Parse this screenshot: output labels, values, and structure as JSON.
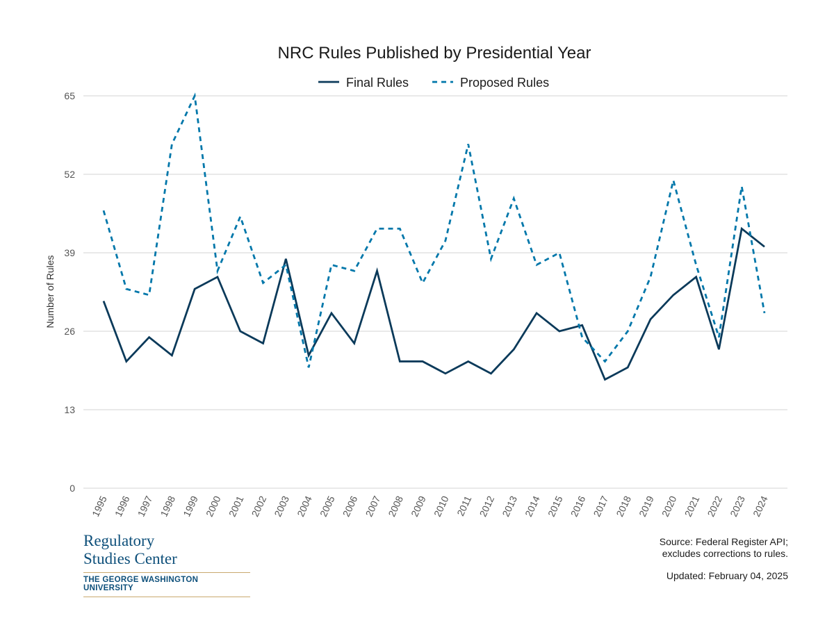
{
  "chart_data": {
    "type": "line",
    "title": "NRC Rules Published by Presidential Year",
    "xlabel": "",
    "ylabel": "Number of Rules",
    "ylim": [
      0,
      65
    ],
    "yticks": [
      0,
      13,
      26,
      39,
      52,
      65
    ],
    "grid": true,
    "legend_position": "top",
    "categories": [
      "1995",
      "1996",
      "1997",
      "1998",
      "1999",
      "2000",
      "2001",
      "2002",
      "2003",
      "2004",
      "2005",
      "2006",
      "2007",
      "2008",
      "2009",
      "2010",
      "2011",
      "2012",
      "2013",
      "2014",
      "2015",
      "2016",
      "2017",
      "2018",
      "2019",
      "2020",
      "2021",
      "2022",
      "2023",
      "2024"
    ],
    "series": [
      {
        "name": "Final Rules",
        "style": "solid",
        "color": "#0b3a5a",
        "values": [
          31,
          21,
          25,
          22,
          33,
          35,
          26,
          24,
          38,
          22,
          29,
          24,
          36,
          21,
          21,
          19,
          21,
          19,
          23,
          29,
          26,
          27,
          18,
          20,
          28,
          32,
          35,
          23,
          43,
          40
        ]
      },
      {
        "name": "Proposed Rules",
        "style": "dashed",
        "color": "#0077aa",
        "values": [
          46,
          33,
          32,
          57,
          65,
          36,
          45,
          34,
          37,
          20,
          37,
          36,
          43,
          43,
          34,
          41,
          57,
          38,
          48,
          37,
          39,
          25,
          21,
          26,
          35,
          51,
          37,
          25,
          50,
          29
        ]
      }
    ]
  },
  "footer": {
    "logo_line1": "Regulatory",
    "logo_line2": "Studies Center",
    "logo_university": "THE GEORGE WASHINGTON UNIVERSITY",
    "source_line1": "Source: Federal Register API;",
    "source_line2": "excludes corrections to rules.",
    "updated": "Updated: February 04, 2025"
  }
}
